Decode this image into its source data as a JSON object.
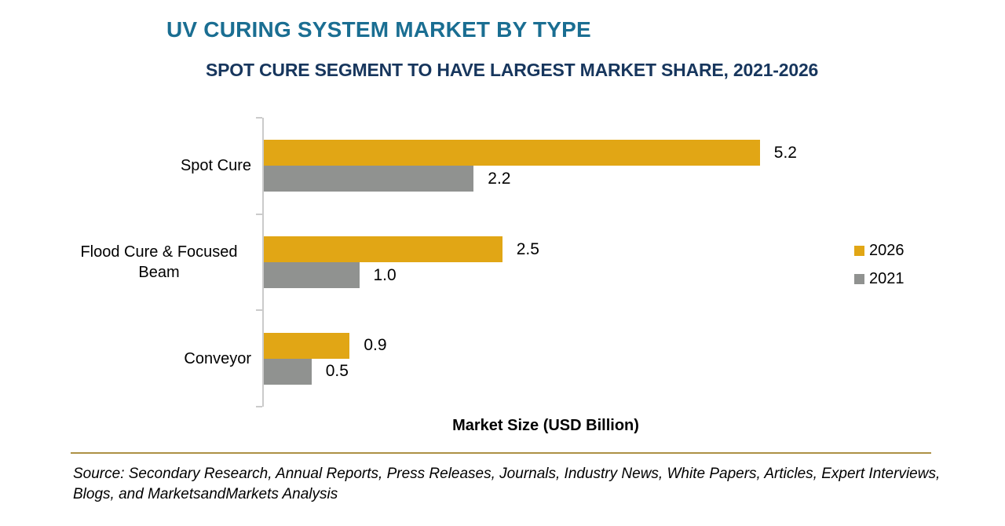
{
  "header": {
    "title": "UV CURING SYSTEM MARKET BY TYPE",
    "subtitle": "SPOT CURE SEGMENT TO HAVE LARGEST MARKET SHARE, 2021-2026"
  },
  "chart_data": {
    "type": "bar",
    "orientation": "horizontal",
    "title": "UV CURING SYSTEM MARKET BY TYPE",
    "subtitle": "SPOT CURE SEGMENT TO HAVE LARGEST MARKET SHARE, 2021-2026",
    "categories": [
      "Spot Cure",
      "Flood Cure & Focused Beam",
      "Conveyor"
    ],
    "series": [
      {
        "name": "2026",
        "color": "#E1A615",
        "values": [
          5.2,
          2.5,
          0.9
        ]
      },
      {
        "name": "2021",
        "color": "#909290",
        "values": [
          2.2,
          1.0,
          0.5
        ]
      }
    ],
    "xlabel": "Market Size (USD Billion)",
    "ylabel": "",
    "xlim": [
      0,
      5.5
    ],
    "grid": false,
    "legend_position": "center-right",
    "value_labels": "end-of-bar, one decimal"
  },
  "source": {
    "text": "Source: Secondary Research, Annual Reports, Press Releases, Journals, Industry News, White Papers, Articles, Expert Interviews, Blogs, and MarketsandMarkets Analysis"
  },
  "colors": {
    "title_teal": "#1A6E92",
    "subtitle_navy": "#17365D",
    "bar_gold_2026": "#E1A615",
    "bar_gray_2021": "#909290",
    "axis_gray": "#CBCBCB",
    "divider_gold": "#AD9144",
    "text_black": "#000000",
    "background": "#FFFFFF"
  }
}
